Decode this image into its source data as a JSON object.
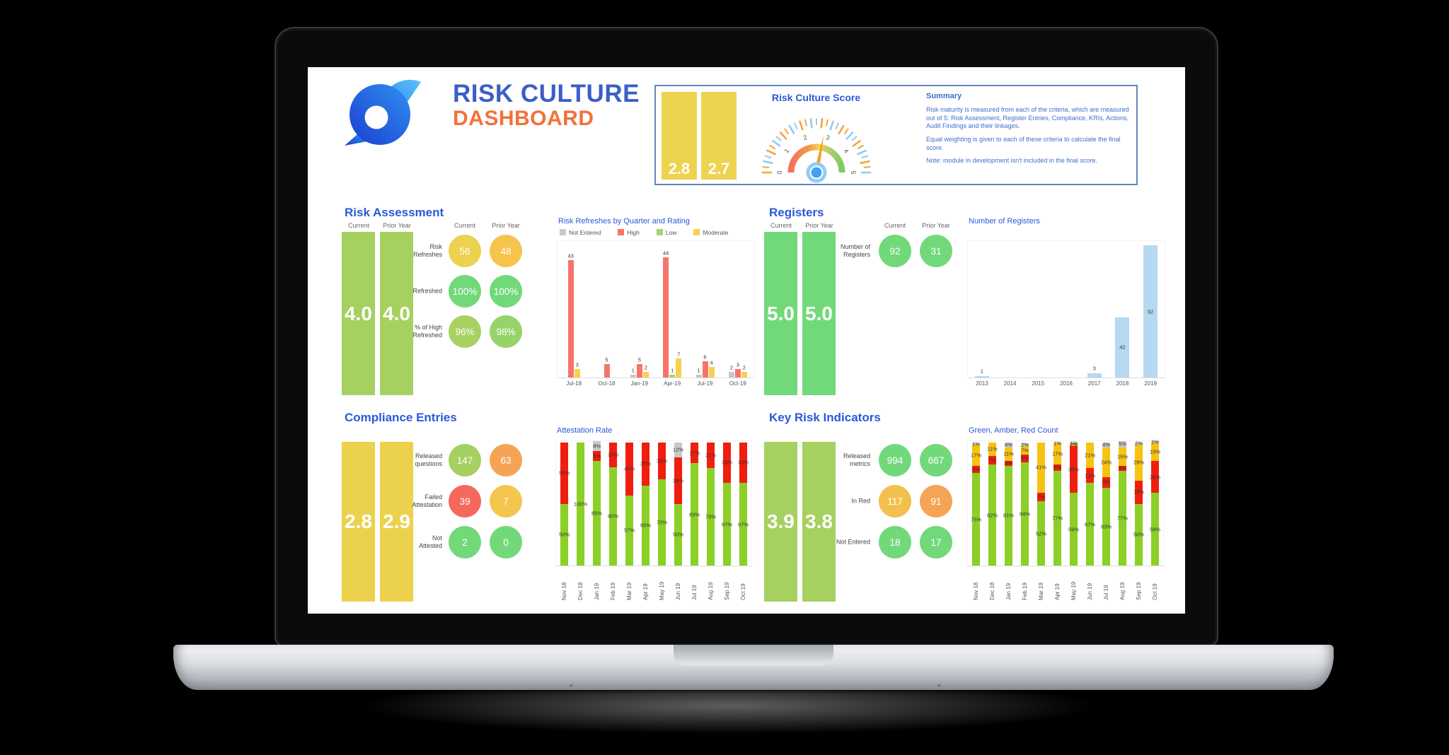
{
  "brand": {
    "title_line1": "RISK CULTURE",
    "title_line2": "DASHBOARD"
  },
  "score_panel": {
    "title": "Risk Culture Score",
    "bars": [
      {
        "value": "2.8",
        "color": "#eed34f"
      },
      {
        "value": "2.7",
        "color": "#eed34f"
      }
    ],
    "gauge": {
      "min": 0,
      "max": 5,
      "value": 2.8,
      "tick_labels": [
        "0",
        "1",
        "2",
        "3",
        "4",
        "5"
      ],
      "needle_color": "#f39c1f",
      "hub_color": "#3fa3ee"
    },
    "summary": {
      "title": "Summary",
      "paragraphs": [
        "Risk maturity is measured from each of the criteria, which are measured out of 5: Risk Assessment, Register Entries, Compliance, KRIs, Actions, Audit Findings and their linkages.",
        "Equal weighting is given to each of these criteria to calculate the final score.",
        "Note: module in development isn't included in the final score."
      ]
    }
  },
  "sections": {
    "risk_assessment": {
      "title": "Risk Assessment",
      "bar_headers": [
        "Current",
        "Prior Year"
      ],
      "circle_headers": [
        "Current",
        "Prior Year"
      ],
      "bars": [
        {
          "value": "4.0",
          "color": "#a6d05f"
        },
        {
          "value": "4.0",
          "color": "#a6d05f"
        }
      ],
      "stats": [
        {
          "label": "Risk\nRefreshes",
          "current": "56",
          "current_color": "#edd150",
          "prior": "48",
          "prior_color": "#f6c34c"
        },
        {
          "label": "Refreshed",
          "current": "100%",
          "current_color": "#72d97b",
          "prior": "100%",
          "prior_color": "#72d97b"
        },
        {
          "label": "% of High\nRefreshed",
          "current": "96%",
          "current_color": "#a9d161",
          "prior": "98%",
          "prior_color": "#97d36b"
        }
      ]
    },
    "registers": {
      "title": "Registers",
      "bar_headers": [
        "Current",
        "Prior Year"
      ],
      "circle_headers": [
        "Current",
        "Prior Year"
      ],
      "bars": [
        {
          "value": "5.0",
          "color": "#72d97b"
        },
        {
          "value": "5.0",
          "color": "#72d97b"
        }
      ],
      "stats": [
        {
          "label": "Number of\nRegisters",
          "current": "92",
          "current_color": "#72d97b",
          "prior": "31",
          "prior_color": "#72d97b"
        }
      ]
    },
    "compliance": {
      "title": "Compliance Entries",
      "bars": [
        {
          "value": "2.8",
          "color": "#ecd24c"
        },
        {
          "value": "2.9",
          "color": "#ecd24c"
        }
      ],
      "stats": [
        {
          "label": "Released\nquestions",
          "current": "147",
          "current_color": "#a6d05f",
          "prior": "63",
          "prior_color": "#f5a455"
        },
        {
          "label": "Failed\nAttestation",
          "current": "39",
          "current_color": "#f4695c",
          "prior": "7",
          "prior_color": "#f3c64e"
        },
        {
          "label": "Not\nAttested",
          "current": "2",
          "current_color": "#72d97b",
          "prior": "0",
          "prior_color": "#72d97b"
        }
      ]
    },
    "kri": {
      "title": "Key Risk Indicators",
      "bars": [
        {
          "value": "3.9",
          "color": "#a6d05f"
        },
        {
          "value": "3.8",
          "color": "#a6d05f"
        }
      ],
      "stats": [
        {
          "label": "Released\nmetrics",
          "current": "994",
          "current_color": "#72d97b",
          "prior": "667",
          "prior_color": "#72d97b"
        },
        {
          "label": "In Red",
          "current": "117",
          "current_color": "#f3c04e",
          "prior": "91",
          "prior_color": "#f5a455"
        },
        {
          "label": "Not Entered",
          "current": "18",
          "current_color": "#72d97b",
          "prior": "17",
          "prior_color": "#72d97b"
        }
      ]
    }
  },
  "chart_data": [
    {
      "id": "risk-refreshes",
      "type": "grouped-bar",
      "title": "Risk Refreshes by Quarter and Rating",
      "categories": [
        "Jul-18",
        "Oct-18",
        "Jan-19",
        "Apr-19",
        "Jul-19",
        "Oct-19"
      ],
      "series": [
        {
          "name": "Not Entered",
          "color": "#c9c9c9",
          "values": [
            0,
            0,
            1,
            0,
            1,
            2
          ]
        },
        {
          "name": "High",
          "color": "#f8736a",
          "values": [
            43,
            5,
            5,
            44,
            6,
            3
          ]
        },
        {
          "name": "Low",
          "color": "#a3d56f",
          "values": [
            0,
            0,
            0,
            1,
            0,
            0
          ]
        },
        {
          "name": "Moderate",
          "color": "#f7d14d",
          "values": [
            3,
            0,
            2,
            7,
            4,
            2
          ]
        }
      ],
      "ylim": [
        0,
        50
      ],
      "legend_position": "top"
    },
    {
      "id": "number-of-registers",
      "type": "bar",
      "title": "Number of Registers",
      "categories": [
        "2013",
        "2014",
        "2015",
        "2016",
        "2017",
        "2018",
        "2019"
      ],
      "values": [
        1,
        0,
        0,
        0,
        3,
        42,
        92
      ],
      "color": "#b5d9f1",
      "ylim": [
        0,
        95
      ]
    },
    {
      "id": "attestation-rate",
      "type": "stacked-bar",
      "title": "Attestation Rate",
      "unit": "%",
      "categories": [
        "Nov 18",
        "Dec 18",
        "Jan 19",
        "Feb 19",
        "Mar 19",
        "Apr 19",
        "May 19",
        "Jun 19",
        "Jul 19",
        "Aug 19",
        "Sep 19",
        "Oct 19"
      ],
      "series": [
        {
          "name": "Attested",
          "color": "#8ccf26",
          "values": [
            50,
            100,
            85,
            80,
            57,
            65,
            70,
            50,
            83,
            79,
            67,
            67
          ]
        },
        {
          "name": "Failed",
          "color": "#f01e0e",
          "values": [
            50,
            0,
            8,
            20,
            43,
            35,
            30,
            38,
            17,
            21,
            33,
            33
          ]
        },
        {
          "name": "Not Attested",
          "color": "#c9c9c9",
          "values": [
            0,
            0,
            8,
            0,
            0,
            0,
            0,
            12,
            0,
            0,
            0,
            0
          ]
        }
      ],
      "ylim": [
        0,
        101
      ]
    },
    {
      "id": "green-amber-red",
      "type": "stacked-bar",
      "title": "Green, Amber, Red Count",
      "unit": "%",
      "categories": [
        "Nov 18",
        "Dec 18",
        "Jan 19",
        "Feb 19",
        "Mar 19",
        "Apr 19",
        "May 19",
        "Jun 19",
        "Jul 19",
        "Aug 19",
        "Sep 19",
        "Oct 19"
      ],
      "series": [
        {
          "name": "Green",
          "color": "#8ccf26",
          "values": [
            75,
            82,
            81,
            84,
            52,
            77,
            59,
            67,
            63,
            77,
            50,
            59
          ]
        },
        {
          "name": "Red",
          "color": "#f01e0e",
          "values": [
            6,
            7,
            4,
            6,
            7,
            5,
            38,
            12,
            9,
            4,
            19,
            26
          ]
        },
        {
          "name": "Amber",
          "color": "#f7c312",
          "values": [
            17,
            11,
            11,
            7,
            41,
            17,
            2,
            21,
            24,
            15,
            29,
            15
          ]
        },
        {
          "name": "Not Entered",
          "color": "#c9c9c9",
          "values": [
            1,
            0,
            4,
            2,
            0,
            1,
            1,
            0,
            4,
            5,
            2,
            1
          ]
        }
      ],
      "ylim": [
        0,
        101
      ]
    }
  ]
}
